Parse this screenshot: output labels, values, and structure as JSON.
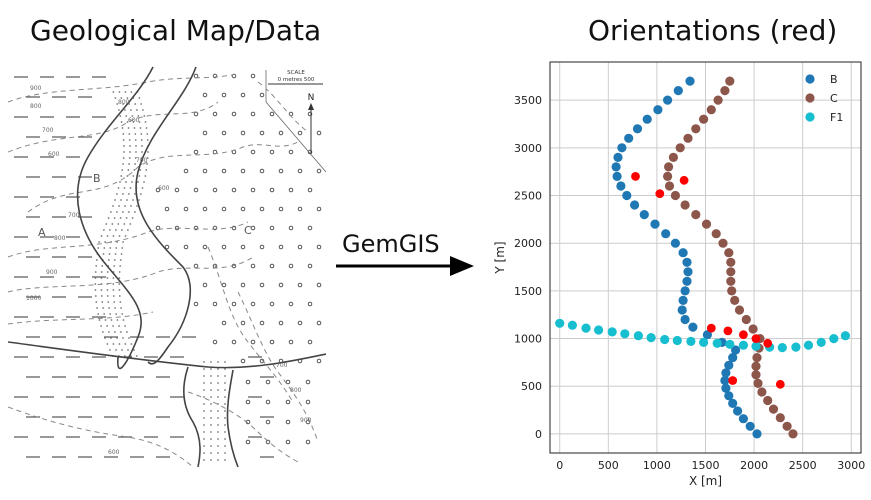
{
  "left_title": "Geological Map/Data",
  "right_title": "Orientations (red)",
  "arrow_label": "GemGIS",
  "map": {
    "unit_labels": [
      "A",
      "B",
      "C"
    ],
    "scale_label": "SCALE",
    "scale_text": "0   metres   500",
    "north_label": "N",
    "contour_labels": [
      "900",
      "800",
      "700",
      "600",
      "700",
      "800",
      "900",
      "1000",
      "800",
      "700",
      "600",
      "600",
      "700",
      "800",
      "900",
      "600"
    ]
  },
  "colors": {
    "B": "#1f77b4",
    "C": "#8c564b",
    "F1": "#17becf",
    "orientations": "#ff0000"
  },
  "chart_data": {
    "type": "scatter",
    "title": "",
    "xlabel": "X [m]",
    "ylabel": "Y [m]",
    "xlim": [
      -100,
      3100
    ],
    "ylim": [
      -200,
      3900
    ],
    "xticks": [
      "0",
      "500",
      "1000",
      "1500",
      "2000",
      "2500",
      "3000"
    ],
    "yticks": [
      "0",
      "500",
      "1000",
      "1500",
      "2000",
      "2500",
      "3000",
      "3500"
    ],
    "grid": true,
    "legend": "top-right",
    "series": [
      {
        "name": "B",
        "color": "#1f77b4",
        "points": [
          [
            2030,
            0
          ],
          [
            1960,
            80
          ],
          [
            1890,
            160
          ],
          [
            1830,
            240
          ],
          [
            1780,
            320
          ],
          [
            1740,
            400
          ],
          [
            1710,
            480
          ],
          [
            1700,
            560
          ],
          [
            1710,
            640
          ],
          [
            1740,
            720
          ],
          [
            1780,
            800
          ],
          [
            1810,
            880
          ],
          [
            1670,
            960
          ],
          [
            1520,
            1040
          ],
          [
            1370,
            1120
          ],
          [
            1290,
            1200
          ],
          [
            1260,
            1300
          ],
          [
            1270,
            1400
          ],
          [
            1290,
            1500
          ],
          [
            1310,
            1600
          ],
          [
            1320,
            1700
          ],
          [
            1310,
            1800
          ],
          [
            1270,
            1900
          ],
          [
            1190,
            2000
          ],
          [
            1090,
            2100
          ],
          [
            980,
            2200
          ],
          [
            870,
            2300
          ],
          [
            770,
            2400
          ],
          [
            690,
            2500
          ],
          [
            630,
            2600
          ],
          [
            590,
            2700
          ],
          [
            580,
            2800
          ],
          [
            600,
            2900
          ],
          [
            640,
            3000
          ],
          [
            710,
            3100
          ],
          [
            800,
            3200
          ],
          [
            900,
            3300
          ],
          [
            1010,
            3400
          ],
          [
            1110,
            3500
          ],
          [
            1220,
            3600
          ],
          [
            1340,
            3700
          ]
        ]
      },
      {
        "name": "C",
        "color": "#8c564b",
        "points": [
          [
            2400,
            0
          ],
          [
            2340,
            80
          ],
          [
            2270,
            170
          ],
          [
            2200,
            260
          ],
          [
            2140,
            350
          ],
          [
            2080,
            440
          ],
          [
            2040,
            530
          ],
          [
            2020,
            620
          ],
          [
            2020,
            710
          ],
          [
            2030,
            800
          ],
          [
            2050,
            900
          ],
          [
            2060,
            1000
          ],
          [
            1990,
            1100
          ],
          [
            1920,
            1200
          ],
          [
            1850,
            1300
          ],
          [
            1800,
            1400
          ],
          [
            1770,
            1500
          ],
          [
            1760,
            1600
          ],
          [
            1760,
            1700
          ],
          [
            1760,
            1800
          ],
          [
            1740,
            1900
          ],
          [
            1680,
            2000
          ],
          [
            1610,
            2100
          ],
          [
            1510,
            2200
          ],
          [
            1400,
            2300
          ],
          [
            1290,
            2400
          ],
          [
            1190,
            2500
          ],
          [
            1130,
            2600
          ],
          [
            1110,
            2700
          ],
          [
            1120,
            2800
          ],
          [
            1170,
            2900
          ],
          [
            1240,
            3000
          ],
          [
            1320,
            3100
          ],
          [
            1400,
            3200
          ],
          [
            1480,
            3300
          ],
          [
            1560,
            3400
          ],
          [
            1630,
            3500
          ],
          [
            1700,
            3600
          ],
          [
            1750,
            3700
          ]
        ]
      },
      {
        "name": "F1",
        "color": "#17becf",
        "points": [
          [
            0,
            1160
          ],
          [
            130,
            1140
          ],
          [
            270,
            1110
          ],
          [
            400,
            1090
          ],
          [
            540,
            1070
          ],
          [
            670,
            1050
          ],
          [
            810,
            1030
          ],
          [
            940,
            1010
          ],
          [
            1080,
            990
          ],
          [
            1210,
            980
          ],
          [
            1350,
            970
          ],
          [
            1480,
            960
          ],
          [
            1620,
            950
          ],
          [
            1750,
            940
          ],
          [
            1890,
            930
          ],
          [
            2020,
            920
          ],
          [
            2160,
            910
          ],
          [
            2290,
            905
          ],
          [
            2430,
            910
          ],
          [
            2560,
            930
          ],
          [
            2690,
            960
          ],
          [
            2820,
            1000
          ],
          [
            2940,
            1030
          ]
        ]
      }
    ],
    "orientations": [
      [
        780,
        2700
      ],
      [
        1280,
        2660
      ],
      [
        1030,
        2520
      ],
      [
        1560,
        1110
      ],
      [
        1730,
        1080
      ],
      [
        1890,
        1040
      ],
      [
        2020,
        1000
      ],
      [
        2140,
        950
      ],
      [
        1780,
        560
      ],
      [
        2270,
        520
      ]
    ]
  }
}
